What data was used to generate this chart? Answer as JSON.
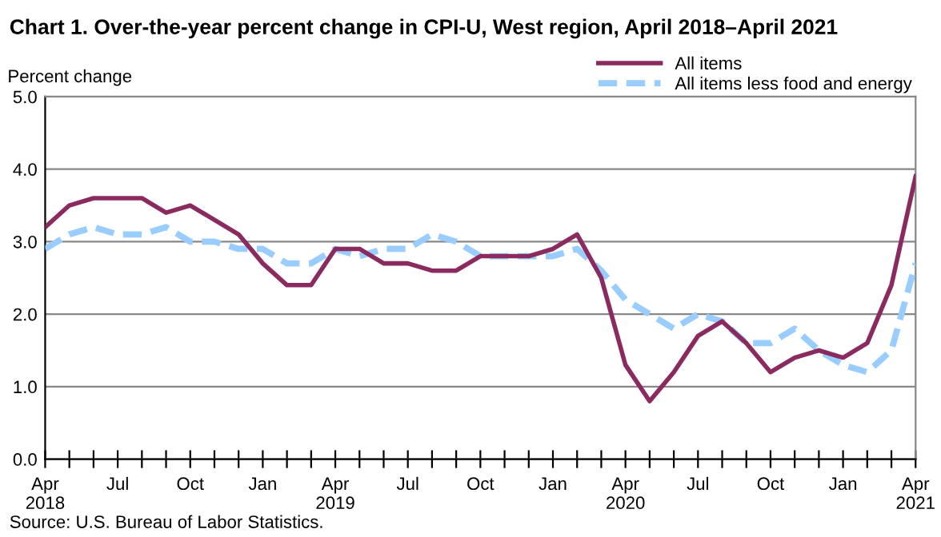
{
  "chart_data": {
    "type": "line",
    "title": "Chart 1. Over-the-year percent change in CPI-U, West region, April 2018–April 2021",
    "ylabel": "Percent change",
    "categories": [
      "Apr\n2018",
      null,
      null,
      "Jul",
      null,
      null,
      "Oct",
      null,
      null,
      "Jan",
      null,
      null,
      "Apr\n2019",
      null,
      null,
      "Jul",
      null,
      null,
      "Oct",
      null,
      null,
      "Jan",
      null,
      null,
      "Apr\n2020",
      null,
      null,
      "Jul",
      null,
      null,
      "Oct",
      null,
      null,
      "Jan",
      null,
      null,
      "Apr\n2021"
    ],
    "series": [
      {
        "name": "All items",
        "color": "#8b2a5e",
        "line_style": "solid",
        "values": [
          3.2,
          3.5,
          3.6,
          3.6,
          3.6,
          3.4,
          3.5,
          3.3,
          3.1,
          2.7,
          2.4,
          2.4,
          2.9,
          2.9,
          2.7,
          2.7,
          2.6,
          2.6,
          2.8,
          2.8,
          2.8,
          2.9,
          3.1,
          2.5,
          1.3,
          0.8,
          1.2,
          1.7,
          1.9,
          1.6,
          1.2,
          1.4,
          1.5,
          1.4,
          1.6,
          2.4,
          3.9
        ]
      },
      {
        "name": "All items less food and energy",
        "color": "#99ccff",
        "line_style": "dashed",
        "values": [
          2.9,
          3.1,
          3.2,
          3.1,
          3.1,
          3.2,
          3.0,
          3.0,
          2.9,
          2.9,
          2.7,
          2.7,
          2.9,
          2.8,
          2.9,
          2.9,
          3.1,
          3.0,
          2.8,
          2.8,
          2.8,
          2.8,
          2.9,
          2.6,
          2.2,
          2.0,
          1.8,
          2.0,
          1.9,
          1.6,
          1.6,
          1.8,
          1.5,
          1.3,
          1.2,
          1.5,
          2.7
        ]
      }
    ],
    "ylim": [
      0,
      5
    ],
    "yticks": [
      {
        "value": 0,
        "label": "0.0"
      },
      {
        "value": 1,
        "label": "1.0"
      },
      {
        "value": 2,
        "label": "2.0"
      },
      {
        "value": 3,
        "label": "3.0"
      },
      {
        "value": 4,
        "label": "4.0"
      },
      {
        "value": 5,
        "label": "5.0"
      }
    ],
    "grid": "y",
    "legend": "top right",
    "marker": "none",
    "annotations": [
      "Source: U.S. Bureau of Labor Statistics."
    ]
  }
}
